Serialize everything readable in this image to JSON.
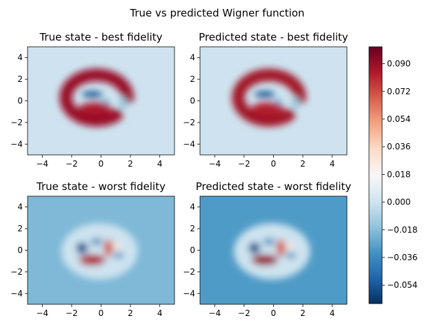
{
  "figure": {
    "suptitle": "True vs predicted Wigner function"
  },
  "chart_data": {
    "type": "heatmap",
    "colormap": "RdBu_r",
    "colorbar": {
      "vmin": -0.066,
      "vmax": 0.101,
      "ticks": [
        -0.054,
        -0.036,
        -0.018,
        0.0,
        0.018,
        0.036,
        0.054,
        0.072,
        0.09
      ],
      "tick_labels": [
        "−0.054",
        "−0.036",
        "−0.018",
        "0.000",
        "0.018",
        "0.036",
        "0.054",
        "0.072",
        "0.090"
      ]
    },
    "panels": [
      {
        "title": "True state - best fidelity",
        "xlim": [
          -5,
          5
        ],
        "ylim": [
          -5,
          5
        ],
        "xticks": [
          -4,
          -2,
          0,
          2,
          4
        ],
        "yticks": [
          -4,
          -2,
          0,
          2,
          4
        ],
        "background_value": 0.0,
        "features": [
          {
            "type": "arc",
            "x": -0.3,
            "y": 0.3,
            "r": 2.1,
            "width": 0.85,
            "value": 0.09,
            "from_deg": 0,
            "to_deg": 310
          },
          {
            "type": "blob",
            "x": -0.4,
            "y": -0.7,
            "rx": 1.1,
            "ry": 0.55,
            "value": 0.085
          },
          {
            "type": "blob",
            "x": -0.6,
            "y": 0.6,
            "rx": 0.7,
            "ry": 0.3,
            "value": -0.055
          },
          {
            "type": "blob",
            "x": 0.3,
            "y": -0.1,
            "rx": 0.25,
            "ry": 0.22,
            "value": -0.03
          },
          {
            "type": "blob",
            "x": 1.5,
            "y": -0.2,
            "rx": 0.25,
            "ry": 0.6,
            "value": -0.015
          }
        ]
      },
      {
        "title": "Predicted state - best fidelity",
        "xlim": [
          -5,
          5
        ],
        "ylim": [
          -5,
          5
        ],
        "xticks": [
          -4,
          -2,
          0,
          2,
          4
        ],
        "yticks": [
          -4,
          -2,
          0,
          2,
          4
        ],
        "background_value": 0.0,
        "features": [
          {
            "type": "arc",
            "x": -0.3,
            "y": 0.3,
            "r": 2.1,
            "width": 0.85,
            "value": 0.088,
            "from_deg": 0,
            "to_deg": 310
          },
          {
            "type": "blob",
            "x": -0.4,
            "y": -0.7,
            "rx": 1.1,
            "ry": 0.55,
            "value": 0.083
          },
          {
            "type": "blob",
            "x": -0.6,
            "y": 0.6,
            "rx": 0.7,
            "ry": 0.3,
            "value": -0.055
          },
          {
            "type": "blob",
            "x": 0.3,
            "y": -0.1,
            "rx": 0.25,
            "ry": 0.22,
            "value": -0.03
          },
          {
            "type": "blob",
            "x": 1.5,
            "y": -0.2,
            "rx": 0.25,
            "ry": 0.6,
            "value": -0.015
          }
        ]
      },
      {
        "title": "True state - worst fidelity",
        "xlim": [
          -5,
          5
        ],
        "ylim": [
          -5,
          5
        ],
        "xticks": [
          -4,
          -2,
          0,
          2,
          4
        ],
        "yticks": [
          -4,
          -2,
          0,
          2,
          4
        ],
        "background_value": -0.02,
        "features": [
          {
            "type": "blob",
            "x": -0.1,
            "y": -0.1,
            "rx": 2.6,
            "ry": 2.6,
            "value": 0.0
          },
          {
            "type": "blob",
            "x": -0.6,
            "y": -0.9,
            "rx": 0.9,
            "ry": 0.5,
            "value": 0.085
          },
          {
            "type": "blob",
            "x": 0.5,
            "y": 0.2,
            "rx": 0.3,
            "ry": 0.8,
            "value": 0.07
          },
          {
            "type": "blob",
            "x": 1.1,
            "y": 0.4,
            "rx": 0.3,
            "ry": 0.3,
            "value": 0.03
          },
          {
            "type": "blob",
            "x": -1.3,
            "y": 0.2,
            "rx": 0.4,
            "ry": 0.55,
            "value": -0.055
          },
          {
            "type": "blob",
            "x": -0.3,
            "y": 0.8,
            "rx": 0.4,
            "ry": 0.3,
            "value": -0.04
          },
          {
            "type": "blob",
            "x": 1.2,
            "y": -0.5,
            "rx": 0.35,
            "ry": 0.25,
            "value": -0.04
          }
        ]
      },
      {
        "title": "Predicted state - worst fidelity",
        "xlim": [
          -5,
          5
        ],
        "ylim": [
          -5,
          5
        ],
        "xticks": [
          -4,
          -2,
          0,
          2,
          4
        ],
        "yticks": [
          -4,
          -2,
          0,
          2,
          4
        ],
        "background_value": -0.03,
        "features": [
          {
            "type": "blob",
            "x": -0.1,
            "y": -0.1,
            "rx": 2.6,
            "ry": 2.6,
            "value": 0.0
          },
          {
            "type": "blob",
            "x": -0.6,
            "y": -0.9,
            "rx": 0.9,
            "ry": 0.5,
            "value": 0.09
          },
          {
            "type": "blob",
            "x": 0.5,
            "y": 0.2,
            "rx": 0.3,
            "ry": 0.8,
            "value": 0.07
          },
          {
            "type": "blob",
            "x": 1.1,
            "y": 0.4,
            "rx": 0.3,
            "ry": 0.3,
            "value": 0.03
          },
          {
            "type": "blob",
            "x": -1.3,
            "y": 0.2,
            "rx": 0.4,
            "ry": 0.55,
            "value": -0.055
          },
          {
            "type": "blob",
            "x": -0.3,
            "y": 0.8,
            "rx": 0.4,
            "ry": 0.3,
            "value": -0.04
          },
          {
            "type": "blob",
            "x": 1.2,
            "y": -0.5,
            "rx": 0.35,
            "ry": 0.25,
            "value": -0.04
          }
        ]
      }
    ]
  }
}
